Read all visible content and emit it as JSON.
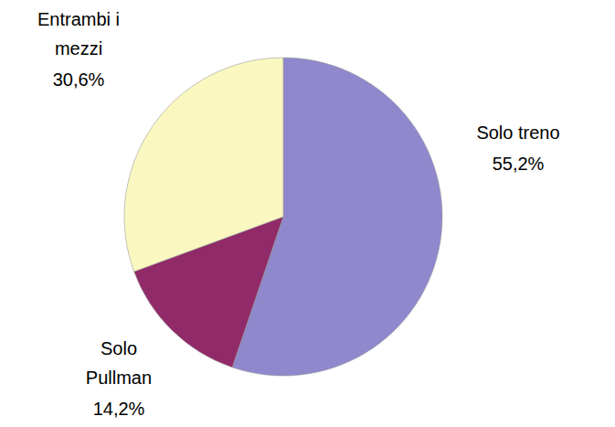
{
  "chart_data": {
    "type": "pie",
    "categories": [
      "Solo treno",
      "Solo Pullman",
      "Entrambi i mezzi"
    ],
    "values": [
      55.2,
      14.2,
      30.6
    ],
    "value_labels": [
      "55,2%",
      "14,2%",
      "30,6%"
    ],
    "colors": [
      "#8f88cc",
      "#902a68",
      "#faf8c0"
    ],
    "data_labels": true
  }
}
